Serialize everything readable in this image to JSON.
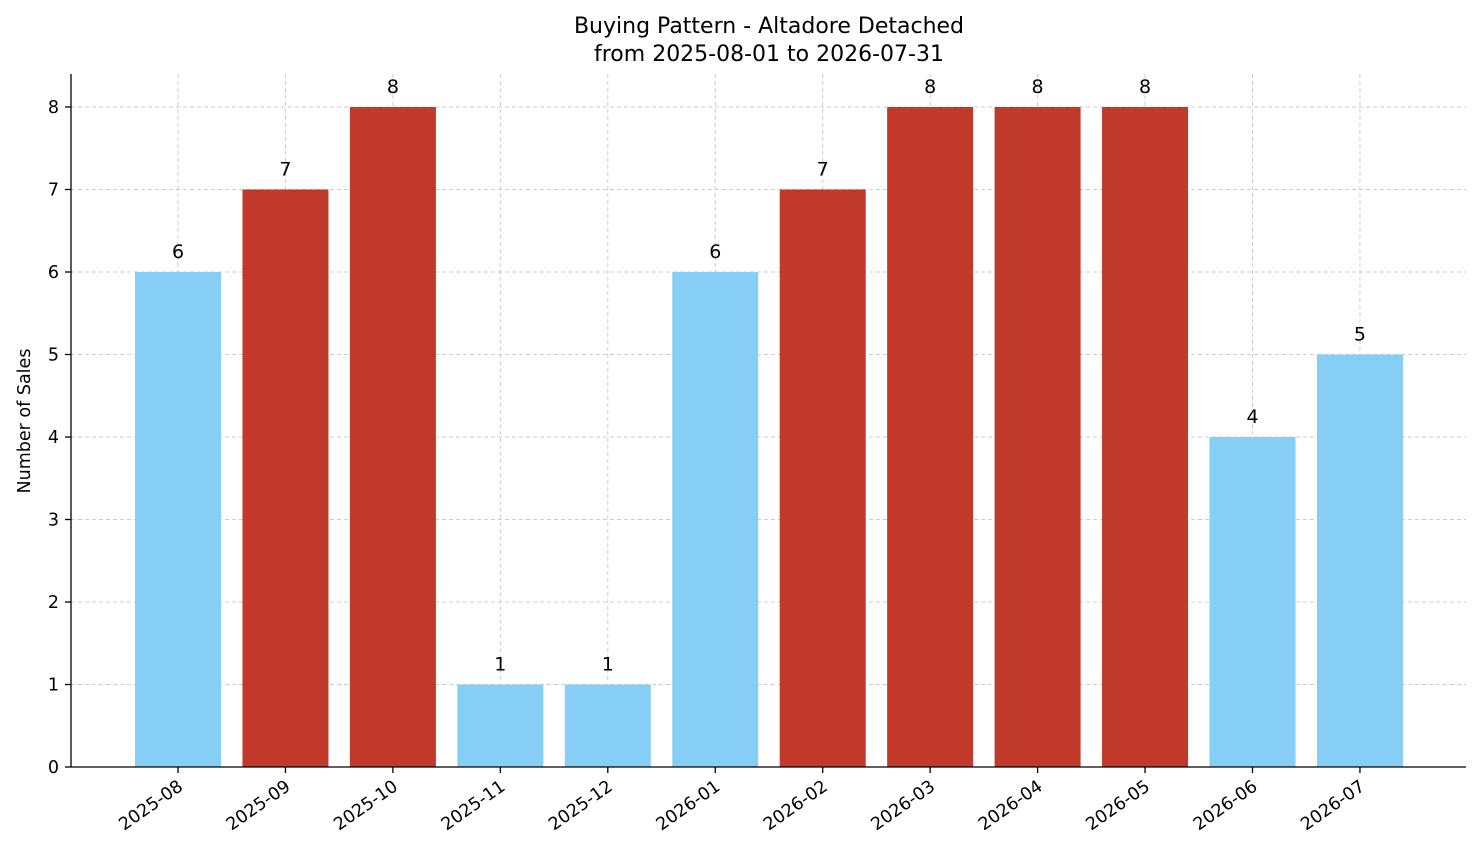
{
  "chart_data": {
    "type": "bar",
    "title_line1": "Buying Pattern - Altadore Detached",
    "title_line2": "from 2025-08-01 to 2026-07-31",
    "xlabel": "",
    "ylabel": "Number of Sales",
    "categories": [
      "2025-08",
      "2025-09",
      "2025-10",
      "2025-11",
      "2025-12",
      "2026-01",
      "2026-02",
      "2026-03",
      "2026-04",
      "2026-05",
      "2026-06",
      "2026-07"
    ],
    "values": [
      6,
      7,
      8,
      1,
      1,
      6,
      7,
      8,
      8,
      8,
      4,
      5
    ],
    "bar_colors": [
      "#87CEF7",
      "#C0392B",
      "#C0392B",
      "#87CEF7",
      "#87CEF7",
      "#87CEF7",
      "#C0392B",
      "#C0392B",
      "#C0392B",
      "#C0392B",
      "#87CEF7",
      "#87CEF7"
    ],
    "ylim": [
      0,
      8.4
    ],
    "yticks": [
      0,
      1,
      2,
      3,
      4,
      5,
      6,
      7,
      8
    ],
    "grid": true,
    "legend": "none"
  }
}
